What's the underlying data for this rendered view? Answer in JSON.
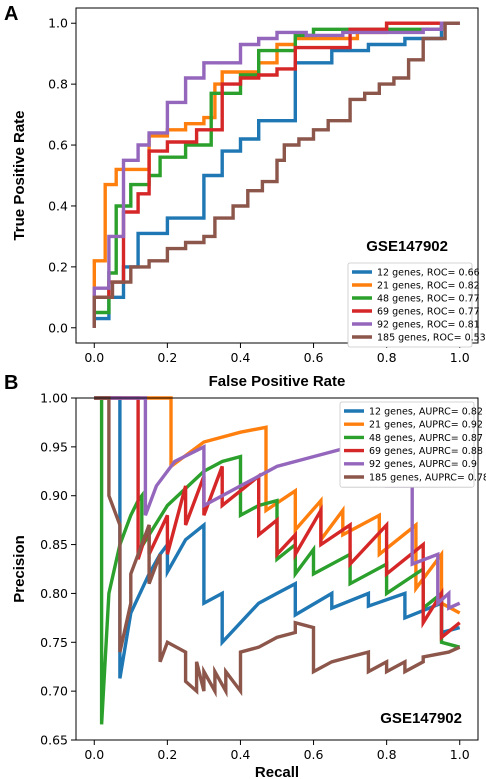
{
  "chart_data": [
    {
      "panel": "A",
      "type": "line",
      "xlabel": "False Positive Rate",
      "ylabel": "True Positive Rate",
      "xlim": [
        -0.05,
        1.05
      ],
      "ylim": [
        -0.05,
        1.05
      ],
      "xticks": [
        "0.0",
        "0.2",
        "0.4",
        "0.6",
        "0.8",
        "1.0"
      ],
      "yticks": [
        "0.0",
        "0.2",
        "0.4",
        "0.6",
        "0.8",
        "1.0"
      ],
      "annotation": "GSE147902",
      "legend_position": "lower-right",
      "grid": false,
      "series": [
        {
          "name": "12 genes, ROC= 0.66",
          "color": "#1f77b4",
          "x": [
            0,
            0,
            0.04,
            0.04,
            0.08,
            0.08,
            0.12,
            0.12,
            0.2,
            0.2,
            0.3,
            0.3,
            0.35,
            0.35,
            0.4,
            0.4,
            0.45,
            0.45,
            0.55,
            0.55,
            0.65,
            0.65,
            0.75,
            0.75,
            0.85,
            0.85,
            0.95,
            0.95,
            1.0,
            1.0
          ],
          "y": [
            0,
            0.03,
            0.03,
            0.1,
            0.1,
            0.2,
            0.2,
            0.31,
            0.31,
            0.36,
            0.36,
            0.5,
            0.5,
            0.58,
            0.58,
            0.62,
            0.62,
            0.68,
            0.68,
            0.87,
            0.87,
            0.91,
            0.91,
            0.93,
            0.93,
            0.95,
            0.95,
            1.0,
            1.0,
            1.0
          ]
        },
        {
          "name": "21 genes, ROC= 0.82",
          "color": "#ff7f0e",
          "x": [
            0,
            0,
            0.03,
            0.03,
            0.06,
            0.06,
            0.15,
            0.15,
            0.2,
            0.2,
            0.25,
            0.25,
            0.3,
            0.3,
            0.33,
            0.33,
            0.35,
            0.35,
            0.45,
            0.45,
            0.5,
            0.5,
            0.55,
            0.55,
            0.72,
            0.72,
            0.8,
            0.8,
            0.95,
            0.95,
            1.0
          ],
          "y": [
            0,
            0.22,
            0.22,
            0.47,
            0.47,
            0.52,
            0.52,
            0.63,
            0.63,
            0.65,
            0.65,
            0.67,
            0.67,
            0.69,
            0.69,
            0.8,
            0.8,
            0.84,
            0.84,
            0.87,
            0.87,
            0.93,
            0.93,
            0.95,
            0.95,
            0.97,
            0.97,
            1.0,
            1.0,
            1.0,
            1.0
          ]
        },
        {
          "name": "48 genes, ROC= 0.77",
          "color": "#2ca02c",
          "x": [
            0,
            0,
            0.04,
            0.04,
            0.06,
            0.06,
            0.1,
            0.1,
            0.15,
            0.15,
            0.18,
            0.18,
            0.25,
            0.25,
            0.32,
            0.32,
            0.4,
            0.4,
            0.45,
            0.45,
            0.55,
            0.55,
            0.6,
            0.6,
            0.85,
            0.85,
            0.95,
            0.95,
            1.0
          ],
          "y": [
            0,
            0.05,
            0.05,
            0.18,
            0.18,
            0.4,
            0.4,
            0.47,
            0.47,
            0.5,
            0.5,
            0.56,
            0.56,
            0.6,
            0.6,
            0.77,
            0.77,
            0.83,
            0.83,
            0.91,
            0.91,
            0.96,
            0.96,
            0.98,
            0.98,
            0.98,
            0.98,
            1.0,
            1.0
          ]
        },
        {
          "name": "69 genes, ROC= 0.77",
          "color": "#d62728",
          "x": [
            0,
            0,
            0.04,
            0.04,
            0.08,
            0.08,
            0.12,
            0.12,
            0.15,
            0.15,
            0.2,
            0.2,
            0.28,
            0.28,
            0.35,
            0.35,
            0.4,
            0.4,
            0.45,
            0.45,
            0.5,
            0.5,
            0.55,
            0.55,
            0.7,
            0.7,
            0.8,
            0.8,
            0.9,
            0.9,
            1.0
          ],
          "y": [
            0,
            0.1,
            0.1,
            0.15,
            0.15,
            0.38,
            0.38,
            0.44,
            0.44,
            0.58,
            0.58,
            0.61,
            0.61,
            0.65,
            0.65,
            0.8,
            0.8,
            0.82,
            0.82,
            0.83,
            0.83,
            0.85,
            0.85,
            0.92,
            0.92,
            0.98,
            0.98,
            1.0,
            1.0,
            1.0,
            1.0
          ]
        },
        {
          "name": "92 genes, ROC= 0.81",
          "color": "#9467bd",
          "x": [
            0,
            0,
            0.04,
            0.04,
            0.08,
            0.08,
            0.12,
            0.12,
            0.15,
            0.15,
            0.2,
            0.2,
            0.25,
            0.25,
            0.3,
            0.3,
            0.4,
            0.4,
            0.45,
            0.45,
            0.5,
            0.5,
            0.58,
            0.58,
            0.68,
            0.68,
            0.9,
            0.9,
            0.95,
            0.95,
            1.0
          ],
          "y": [
            0,
            0.13,
            0.13,
            0.3,
            0.3,
            0.55,
            0.55,
            0.6,
            0.6,
            0.64,
            0.64,
            0.74,
            0.74,
            0.82,
            0.82,
            0.87,
            0.87,
            0.93,
            0.93,
            0.95,
            0.95,
            0.97,
            0.97,
            0.96,
            0.96,
            0.97,
            0.97,
            0.98,
            0.98,
            1.0,
            1.0
          ]
        },
        {
          "name": "185 genes, ROC= 0.53",
          "color": "#8c564b",
          "x": [
            0,
            0,
            0.05,
            0.05,
            0.1,
            0.1,
            0.15,
            0.15,
            0.2,
            0.2,
            0.25,
            0.25,
            0.3,
            0.3,
            0.33,
            0.33,
            0.38,
            0.38,
            0.42,
            0.42,
            0.46,
            0.46,
            0.5,
            0.5,
            0.52,
            0.52,
            0.56,
            0.56,
            0.6,
            0.6,
            0.64,
            0.64,
            0.7,
            0.7,
            0.74,
            0.74,
            0.78,
            0.78,
            0.82,
            0.82,
            0.86,
            0.86,
            0.9,
            0.9,
            0.96,
            0.96,
            1.0
          ],
          "y": [
            0,
            0.1,
            0.1,
            0.15,
            0.15,
            0.2,
            0.2,
            0.22,
            0.22,
            0.26,
            0.26,
            0.28,
            0.28,
            0.3,
            0.3,
            0.36,
            0.36,
            0.4,
            0.4,
            0.45,
            0.45,
            0.48,
            0.48,
            0.55,
            0.55,
            0.6,
            0.6,
            0.62,
            0.62,
            0.65,
            0.65,
            0.68,
            0.68,
            0.75,
            0.75,
            0.77,
            0.77,
            0.8,
            0.8,
            0.82,
            0.82,
            0.88,
            0.88,
            0.95,
            0.95,
            1.0,
            1.0
          ]
        }
      ]
    },
    {
      "panel": "B",
      "type": "line",
      "xlabel": "Recall",
      "ylabel": "Precision",
      "xlim": [
        -0.05,
        1.05
      ],
      "ylim": [
        0.65,
        1.0
      ],
      "xticks": [
        "0.0",
        "0.2",
        "0.4",
        "0.6",
        "0.8",
        "1.0"
      ],
      "yticks": [
        "0.65",
        "0.70",
        "0.75",
        "0.80",
        "0.85",
        "0.90",
        "0.95",
        "1.00"
      ],
      "annotation": "GSE147902",
      "legend_position": "upper-right",
      "grid": false,
      "series": [
        {
          "name": "12 genes, AUPRC= 0.82",
          "color": "#1f77b4",
          "x": [
            0,
            0.07,
            0.07,
            0.1,
            0.15,
            0.18,
            0.2,
            0.2,
            0.25,
            0.3,
            0.3,
            0.35,
            0.35,
            0.45,
            0.5,
            0.55,
            0.55,
            0.65,
            0.65,
            0.75,
            0.75,
            0.85,
            0.85,
            0.95,
            0.95,
            1.0
          ],
          "y": [
            1.0,
            1.0,
            0.713,
            0.78,
            0.82,
            0.84,
            0.85,
            0.822,
            0.855,
            0.87,
            0.79,
            0.8,
            0.75,
            0.79,
            0.8,
            0.81,
            0.778,
            0.8,
            0.785,
            0.8,
            0.787,
            0.8,
            0.775,
            0.79,
            0.76,
            0.765
          ]
        },
        {
          "name": "21 genes, AUPRC= 0.92",
          "color": "#ff7f0e",
          "x": [
            0,
            0.18,
            0.18,
            0.21,
            0.21,
            0.3,
            0.4,
            0.47,
            0.47,
            0.55,
            0.55,
            0.62,
            0.62,
            0.68,
            0.68,
            0.78,
            0.78,
            0.88,
            0.88,
            0.95,
            0.95,
            1.0
          ],
          "y": [
            1.0,
            1.0,
            1.0,
            1.0,
            0.93,
            0.955,
            0.965,
            0.97,
            0.885,
            0.905,
            0.865,
            0.895,
            0.855,
            0.885,
            0.86,
            0.88,
            0.84,
            0.87,
            0.805,
            0.84,
            0.79,
            0.78
          ]
        },
        {
          "name": "48 genes, AUPRC= 0.87",
          "color": "#2ca02c",
          "x": [
            0,
            0.02,
            0.02,
            0.04,
            0.07,
            0.1,
            0.12,
            0.13,
            0.13,
            0.2,
            0.3,
            0.35,
            0.4,
            0.4,
            0.45,
            0.5,
            0.5,
            0.55,
            0.55,
            0.6,
            0.6,
            0.7,
            0.7,
            0.8,
            0.8,
            0.9,
            0.9,
            0.95,
            0.95,
            1.0
          ],
          "y": [
            1.0,
            1.0,
            0.666,
            0.8,
            0.85,
            0.88,
            0.895,
            0.9,
            0.848,
            0.89,
            0.925,
            0.935,
            0.94,
            0.88,
            0.89,
            0.895,
            0.835,
            0.85,
            0.82,
            0.845,
            0.82,
            0.84,
            0.81,
            0.83,
            0.8,
            0.825,
            0.785,
            0.8,
            0.75,
            0.745
          ]
        },
        {
          "name": "69 genes, AUPRC= 0.88",
          "color": "#d62728",
          "x": [
            0,
            0.12,
            0.12,
            0.15,
            0.15,
            0.2,
            0.2,
            0.25,
            0.25,
            0.3,
            0.3,
            0.35,
            0.35,
            0.45,
            0.45,
            0.5,
            0.5,
            0.55,
            0.55,
            0.62,
            0.62,
            0.7,
            0.7,
            0.8,
            0.8,
            0.9,
            0.9,
            0.95,
            0.95,
            1.0
          ],
          "y": [
            1.0,
            1.0,
            0.835,
            0.87,
            0.84,
            0.88,
            0.84,
            0.91,
            0.87,
            0.92,
            0.88,
            0.93,
            0.89,
            0.92,
            0.86,
            0.875,
            0.84,
            0.86,
            0.84,
            0.885,
            0.85,
            0.87,
            0.83,
            0.87,
            0.82,
            0.85,
            0.77,
            0.8,
            0.755,
            0.77
          ]
        },
        {
          "name": "92 genes, AUPRC= 0.9",
          "color": "#9467bd",
          "x": [
            0,
            0.14,
            0.14,
            0.17,
            0.22,
            0.3,
            0.3,
            0.35,
            0.4,
            0.5,
            0.6,
            0.7,
            0.75,
            0.8,
            0.8,
            0.87,
            0.87,
            0.94,
            0.94,
            0.97,
            0.97,
            1.0
          ],
          "y": [
            1.0,
            1.0,
            0.88,
            0.91,
            0.935,
            0.95,
            0.89,
            0.9,
            0.91,
            0.93,
            0.94,
            0.95,
            0.96,
            0.97,
            0.91,
            0.91,
            0.83,
            0.84,
            0.79,
            0.8,
            0.785,
            0.79
          ]
        },
        {
          "name": "185 genes, AUPRC= 0.78",
          "color": "#8c564b",
          "x": [
            0,
            0.04,
            0.04,
            0.07,
            0.07,
            0.1,
            0.1,
            0.15,
            0.15,
            0.18,
            0.18,
            0.2,
            0.2,
            0.25,
            0.25,
            0.28,
            0.28,
            0.3,
            0.3,
            0.33,
            0.33,
            0.36,
            0.36,
            0.4,
            0.4,
            0.45,
            0.5,
            0.55,
            0.55,
            0.6,
            0.6,
            0.65,
            0.7,
            0.75,
            0.75,
            0.8,
            0.8,
            0.85,
            0.85,
            0.9,
            0.9,
            0.97,
            0.97,
            1.0
          ],
          "y": [
            1.0,
            1.0,
            0.9,
            0.87,
            0.74,
            0.79,
            0.82,
            0.87,
            0.81,
            0.84,
            0.73,
            0.75,
            0.75,
            0.74,
            0.71,
            0.7,
            0.73,
            0.7,
            0.72,
            0.7,
            0.72,
            0.7,
            0.72,
            0.7,
            0.74,
            0.745,
            0.755,
            0.76,
            0.77,
            0.765,
            0.72,
            0.73,
            0.735,
            0.74,
            0.72,
            0.73,
            0.72,
            0.73,
            0.72,
            0.73,
            0.735,
            0.74,
            0.74,
            0.745
          ]
        }
      ]
    }
  ],
  "panels": {
    "a": {
      "letter": "A"
    },
    "b": {
      "letter": "B"
    }
  }
}
